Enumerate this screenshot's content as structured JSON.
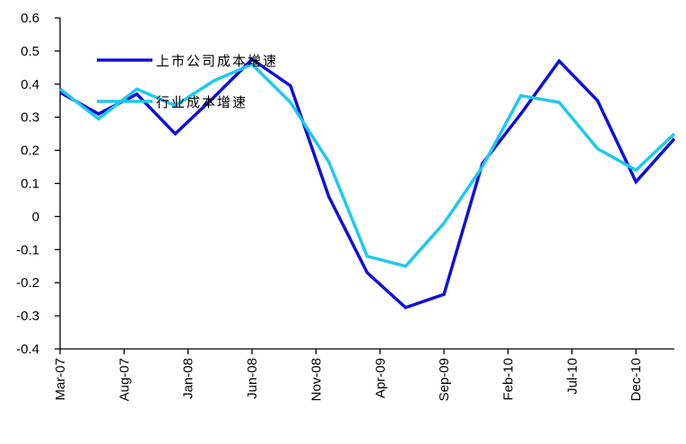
{
  "chart_data": {
    "type": "line",
    "title": "",
    "xlabel": "",
    "ylabel": "",
    "ylim": [
      -0.4,
      0.6
    ],
    "y_ticks": [
      "0.6",
      "0.5",
      "0.4",
      "0.3",
      "0.2",
      "0.1",
      "0",
      "-0.1",
      "-0.2",
      "-0.3",
      "-0.4"
    ],
    "y_tick_values": [
      0.6,
      0.5,
      0.4,
      0.3,
      0.2,
      0.1,
      0,
      -0.1,
      -0.2,
      -0.3,
      -0.4
    ],
    "categories": [
      "Mar-07",
      "Jun-07",
      "Sep-07",
      "Dec-07",
      "Mar-08",
      "Jun-08",
      "Sep-08",
      "Dec-08",
      "Mar-09",
      "Jun-09",
      "Sep-09",
      "Dec-09",
      "Mar-10",
      "Jun-10",
      "Sep-10",
      "Dec-10",
      "Mar-11"
    ],
    "x_tick_labels": [
      "Mar-07",
      "Aug-07",
      "Jan-08",
      "Jun-08",
      "Nov-08",
      "Apr-09",
      "Sep-09",
      "Feb-10",
      "Jul-10",
      "Dec-10"
    ],
    "x_tick_dates": [
      "2007-03",
      "2007-08",
      "2008-01",
      "2008-06",
      "2008-11",
      "2009-04",
      "2009-09",
      "2010-02",
      "2010-07",
      "2010-12"
    ],
    "grid": false,
    "legend": "top-left",
    "series": [
      {
        "name": "上市公司成本增速",
        "color": "#1010d8",
        "values": [
          0.375,
          0.31,
          0.37,
          0.25,
          0.36,
          0.475,
          0.395,
          0.06,
          -0.17,
          -0.275,
          -0.235,
          0.16,
          0.31,
          0.47,
          0.35,
          0.105,
          0.235
        ]
      },
      {
        "name": "行业成本增速",
        "color": "#1ec8f0",
        "values": [
          0.385,
          0.295,
          0.385,
          0.335,
          0.41,
          0.46,
          0.345,
          0.165,
          -0.12,
          -0.15,
          -0.02,
          0.15,
          0.365,
          0.345,
          0.205,
          0.14,
          0.25
        ]
      }
    ]
  }
}
